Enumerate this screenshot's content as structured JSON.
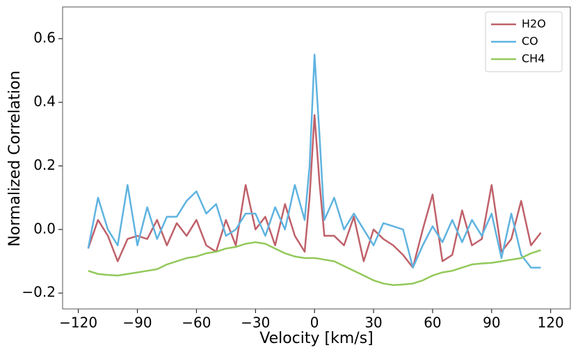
{
  "chart_data": {
    "type": "line",
    "xlabel": "Velocity [km/s]",
    "ylabel": "Normalized Correlation",
    "x": [
      -115,
      -110,
      -105,
      -100,
      -95,
      -90,
      -85,
      -80,
      -75,
      -70,
      -65,
      -60,
      -55,
      -50,
      -45,
      -40,
      -35,
      -30,
      -25,
      -20,
      -15,
      -10,
      -5,
      -2.5,
      0,
      2.5,
      5,
      10,
      15,
      20,
      25,
      30,
      35,
      40,
      45,
      50,
      55,
      60,
      65,
      70,
      75,
      80,
      85,
      90,
      95,
      100,
      105,
      110,
      115
    ],
    "series": [
      {
        "name": "H2O",
        "color": "#bf616a",
        "values": [
          -0.06,
          0.03,
          -0.02,
          -0.1,
          -0.03,
          -0.02,
          -0.03,
          0.03,
          -0.05,
          0.02,
          -0.02,
          0.03,
          -0.05,
          -0.07,
          0.03,
          -0.05,
          0.14,
          0.0,
          0.04,
          -0.05,
          0.08,
          -0.02,
          -0.07,
          0.1,
          0.36,
          0.15,
          -0.02,
          -0.02,
          -0.05,
          0.04,
          -0.1,
          0.0,
          -0.03,
          -0.05,
          -0.08,
          -0.12,
          0.0,
          0.11,
          -0.1,
          -0.08,
          0.06,
          -0.05,
          -0.03,
          0.14,
          -0.07,
          -0.03,
          0.09,
          -0.05,
          -0.01
        ]
      },
      {
        "name": "CO",
        "color": "#5fb3e0",
        "values": [
          -0.06,
          0.1,
          0.0,
          -0.05,
          0.14,
          -0.05,
          0.07,
          -0.03,
          0.04,
          0.04,
          0.09,
          0.12,
          0.05,
          0.08,
          -0.02,
          0.0,
          0.05,
          0.05,
          -0.02,
          0.07,
          0.0,
          0.14,
          0.03,
          0.2,
          0.55,
          0.3,
          0.03,
          0.1,
          0.0,
          0.05,
          0.0,
          -0.05,
          0.02,
          0.01,
          0.0,
          -0.12,
          -0.05,
          0.01,
          -0.04,
          0.03,
          -0.04,
          0.03,
          -0.02,
          0.05,
          -0.09,
          0.05,
          -0.08,
          -0.12,
          -0.12
        ]
      },
      {
        "name": "CH4",
        "color": "#93c85a",
        "values": [
          -0.13,
          -0.14,
          -0.143,
          -0.145,
          -0.14,
          -0.135,
          -0.13,
          -0.125,
          -0.11,
          -0.1,
          -0.09,
          -0.085,
          -0.075,
          -0.07,
          -0.06,
          -0.055,
          -0.045,
          -0.04,
          -0.045,
          -0.06,
          -0.075,
          -0.085,
          -0.09,
          -0.09,
          -0.09,
          -0.092,
          -0.095,
          -0.1,
          -0.115,
          -0.13,
          -0.145,
          -0.16,
          -0.17,
          -0.175,
          -0.173,
          -0.17,
          -0.16,
          -0.145,
          -0.135,
          -0.13,
          -0.12,
          -0.11,
          -0.107,
          -0.105,
          -0.1,
          -0.095,
          -0.09,
          -0.075,
          -0.065
        ]
      }
    ],
    "xlim": [
      -128,
      130
    ],
    "ylim": [
      -0.25,
      0.7
    ],
    "xticks": [
      {
        "value": -120,
        "label": "−120"
      },
      {
        "value": -90,
        "label": "−90"
      },
      {
        "value": -60,
        "label": "−60"
      },
      {
        "value": -30,
        "label": "−30"
      },
      0,
      30,
      60,
      90,
      120
    ],
    "yticks": [
      {
        "value": -0.2,
        "label": "−0.2"
      },
      {
        "value": 0,
        "label": "0.0"
      },
      0.2,
      0.4,
      0.6
    ],
    "legend": "upper right"
  }
}
